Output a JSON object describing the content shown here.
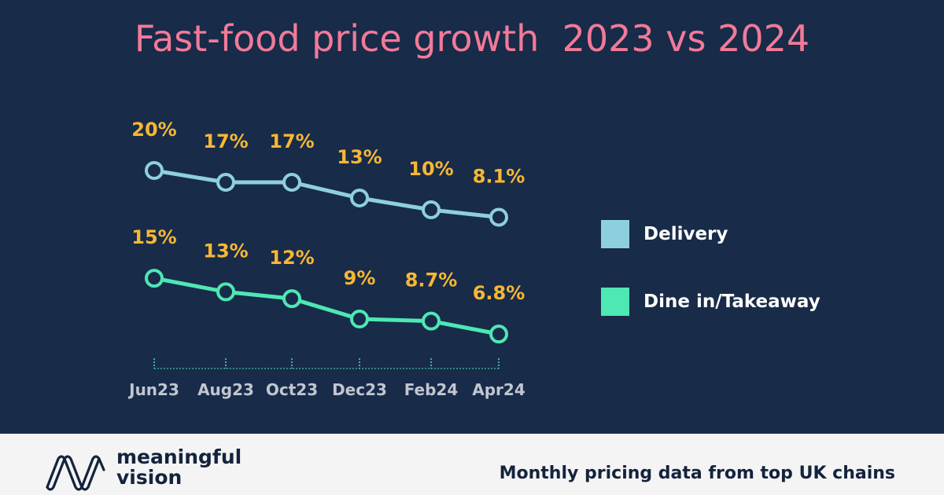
{
  "chart_data": {
    "type": "line",
    "title": "Fast-food price growth  2023 vs 2024",
    "categories": [
      "Jun23",
      "Aug23",
      "Oct23",
      "Dec23",
      "Feb24",
      "Apr24"
    ],
    "series": [
      {
        "name": "Delivery",
        "values": [
          20,
          17,
          17,
          13,
          10,
          8.1
        ],
        "labels": [
          "20%",
          "17%",
          "17%",
          "13%",
          "10%",
          "8.1%"
        ],
        "color": "#8ecfdf"
      },
      {
        "name": "Dine in/Takeaway",
        "values": [
          15,
          13,
          12,
          9,
          8.7,
          6.8
        ],
        "labels": [
          "15%",
          "13%",
          "12%",
          "9%",
          "8.7%",
          "6.8%"
        ],
        "color": "#4de8b4"
      }
    ],
    "label_color": "#f7b733",
    "legend": "right",
    "grid": false
  },
  "footer": {
    "brand_line1": "meaningful",
    "brand_line2": "vision",
    "caption": "Monthly pricing data from top UK chains"
  }
}
